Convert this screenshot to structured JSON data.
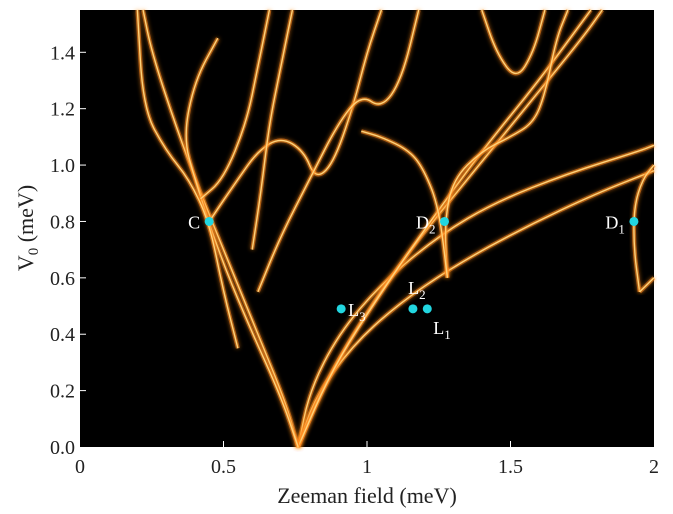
{
  "chart_data": {
    "type": "heatmap",
    "xlabel": "Zeeman field (meV)",
    "ylabel_main": "V",
    "ylabel_sub": "0",
    "ylabel_unit": "(meV)",
    "xlim": [
      0,
      2
    ],
    "ylim": [
      0,
      1.55
    ],
    "x_ticks": [
      "0",
      "0.5",
      "1",
      "1.5",
      "2"
    ],
    "x_tick_values": [
      0,
      0.5,
      1,
      1.5,
      2
    ],
    "y_ticks": [
      "0.0",
      "0.2",
      "0.4",
      "0.6",
      "0.8",
      "1.0",
      "1.2",
      "1.4"
    ],
    "y_tick_values": [
      0,
      0.2,
      0.4,
      0.6,
      0.8,
      1.0,
      1.2,
      1.4
    ],
    "colors": {
      "background": "#000000",
      "line_core": "#ffd27a",
      "line_glow": "#ff8a1e",
      "marker": "#22d6e0"
    },
    "markers": [
      {
        "main": "C",
        "sub": "",
        "x": 0.45,
        "y": 0.8,
        "label_side": "left"
      },
      {
        "main": "D",
        "sub": "2",
        "x": 1.27,
        "y": 0.8,
        "label_side": "left"
      },
      {
        "main": "D",
        "sub": "1",
        "x": 1.93,
        "y": 0.8,
        "label_side": "left"
      },
      {
        "main": "L",
        "sub": "3",
        "x": 0.91,
        "y": 0.49,
        "label_side": "right"
      },
      {
        "main": "L",
        "sub": "2",
        "x": 1.16,
        "y": 0.49,
        "label_side": "above"
      },
      {
        "main": "L",
        "sub": "1",
        "x": 1.21,
        "y": 0.49,
        "label_side": "below-right"
      }
    ],
    "bright_curves": [
      {
        "points": [
          [
            0.76,
            0.0
          ],
          [
            0.8,
            0.2
          ],
          [
            0.9,
            0.4
          ],
          [
            1.05,
            0.58
          ],
          [
            1.25,
            0.75
          ],
          [
            1.45,
            0.87
          ],
          [
            1.7,
            0.97
          ],
          [
            1.95,
            1.05
          ],
          [
            2.0,
            1.07
          ]
        ]
      },
      {
        "points": [
          [
            0.76,
            0.0
          ],
          [
            0.82,
            0.18
          ],
          [
            0.95,
            0.36
          ],
          [
            1.1,
            0.5
          ],
          [
            1.3,
            0.64
          ],
          [
            1.55,
            0.78
          ],
          [
            1.8,
            0.9
          ],
          [
            2.0,
            0.98
          ]
        ]
      },
      {
        "points": [
          [
            0.76,
            0.0
          ],
          [
            0.85,
            0.22
          ],
          [
            0.98,
            0.45
          ],
          [
            1.15,
            0.7
          ],
          [
            1.35,
            0.95
          ],
          [
            1.55,
            1.2
          ],
          [
            1.75,
            1.45
          ],
          [
            1.82,
            1.55
          ]
        ]
      },
      {
        "points": [
          [
            0.76,
            0.0
          ],
          [
            0.88,
            0.28
          ],
          [
            1.05,
            0.55
          ],
          [
            1.22,
            0.8
          ],
          [
            1.4,
            1.05
          ],
          [
            1.6,
            1.3
          ],
          [
            1.78,
            1.55
          ]
        ]
      },
      {
        "points": [
          [
            0.76,
            0.0
          ],
          [
            0.72,
            0.15
          ],
          [
            0.62,
            0.4
          ],
          [
            0.52,
            0.65
          ],
          [
            0.42,
            0.9
          ],
          [
            0.33,
            1.15
          ],
          [
            0.25,
            1.4
          ],
          [
            0.22,
            1.55
          ]
        ]
      },
      {
        "points": [
          [
            0.76,
            0.0
          ],
          [
            0.7,
            0.18
          ],
          [
            0.58,
            0.45
          ],
          [
            0.48,
            0.7
          ],
          [
            0.4,
            0.95
          ],
          [
            0.36,
            1.1
          ],
          [
            0.4,
            1.3
          ],
          [
            0.48,
            1.45
          ]
        ]
      },
      {
        "points": [
          [
            0.55,
            0.35
          ],
          [
            0.5,
            0.55
          ],
          [
            0.45,
            0.8
          ],
          [
            0.38,
            0.95
          ],
          [
            0.3,
            1.05
          ],
          [
            0.22,
            1.2
          ],
          [
            0.2,
            1.55
          ]
        ]
      },
      {
        "points": [
          [
            0.45,
            0.8
          ],
          [
            0.55,
            0.95
          ],
          [
            0.62,
            1.05
          ],
          [
            0.7,
            1.1
          ],
          [
            0.78,
            1.05
          ],
          [
            0.82,
            0.95
          ],
          [
            0.88,
            1.0
          ],
          [
            0.95,
            1.2
          ],
          [
            1.0,
            1.4
          ],
          [
            1.05,
            1.55
          ]
        ]
      },
      {
        "points": [
          [
            0.62,
            0.55
          ],
          [
            0.7,
            0.75
          ],
          [
            0.8,
            0.95
          ],
          [
            0.9,
            1.15
          ],
          [
            0.98,
            1.25
          ],
          [
            1.05,
            1.2
          ],
          [
            1.12,
            1.3
          ],
          [
            1.18,
            1.55
          ]
        ]
      },
      {
        "points": [
          [
            0.6,
            0.7
          ],
          [
            0.63,
            0.9
          ],
          [
            0.66,
            1.15
          ],
          [
            0.7,
            1.35
          ],
          [
            0.74,
            1.55
          ]
        ]
      },
      {
        "points": [
          [
            1.28,
            0.6
          ],
          [
            1.27,
            0.8
          ],
          [
            1.3,
            0.95
          ],
          [
            1.4,
            1.05
          ],
          [
            1.5,
            1.1
          ],
          [
            1.58,
            1.15
          ],
          [
            1.62,
            1.25
          ],
          [
            1.66,
            1.45
          ],
          [
            1.7,
            1.55
          ]
        ]
      },
      {
        "points": [
          [
            1.28,
            0.6
          ],
          [
            1.25,
            0.85
          ],
          [
            1.2,
            0.98
          ],
          [
            1.15,
            1.05
          ],
          [
            1.05,
            1.1
          ],
          [
            0.98,
            1.12
          ]
        ]
      },
      {
        "points": [
          [
            1.95,
            0.55
          ],
          [
            1.93,
            0.7
          ],
          [
            1.93,
            0.85
          ],
          [
            1.96,
            0.95
          ],
          [
            2.0,
            1.0
          ]
        ]
      },
      {
        "points": [
          [
            1.95,
            0.55
          ],
          [
            2.0,
            0.6
          ]
        ]
      },
      {
        "points": [
          [
            1.4,
            1.55
          ],
          [
            1.45,
            1.4
          ],
          [
            1.52,
            1.3
          ],
          [
            1.58,
            1.4
          ],
          [
            1.62,
            1.55
          ]
        ]
      },
      {
        "points": [
          [
            0.42,
            0.88
          ],
          [
            0.5,
            0.95
          ],
          [
            0.58,
            1.15
          ],
          [
            0.62,
            1.35
          ],
          [
            0.66,
            1.55
          ]
        ]
      }
    ]
  }
}
